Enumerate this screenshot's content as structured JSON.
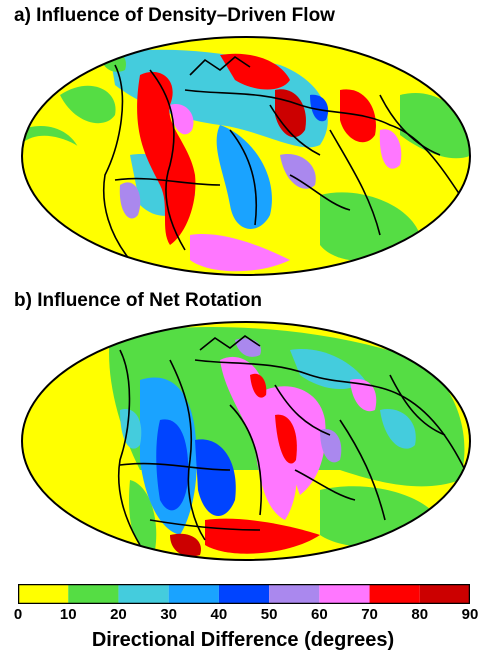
{
  "panels": [
    {
      "title": "a) Influence of Density–Driven Flow"
    },
    {
      "title": "b) Influence of Net Rotation"
    }
  ],
  "colorbar": {
    "label": "Directional Difference (degrees)",
    "ticks": [
      "0",
      "10",
      "20",
      "30",
      "40",
      "50",
      "60",
      "70",
      "80",
      "90"
    ],
    "bins": [
      {
        "range": [
          0,
          10
        ],
        "color": "#ffff00"
      },
      {
        "range": [
          10,
          20
        ],
        "color": "#55dd44"
      },
      {
        "range": [
          20,
          30
        ],
        "color": "#44ccdd"
      },
      {
        "range": [
          30,
          40
        ],
        "color": "#1aa3ff"
      },
      {
        "range": [
          40,
          50
        ],
        "color": "#0044ff"
      },
      {
        "range": [
          50,
          60
        ],
        "color": "#aa88ee"
      },
      {
        "range": [
          60,
          70
        ],
        "color": "#ff77ff"
      },
      {
        "range": [
          70,
          80
        ],
        "color": "#ff0000"
      },
      {
        "range": [
          80,
          90
        ],
        "color": "#cc0000"
      }
    ]
  }
}
